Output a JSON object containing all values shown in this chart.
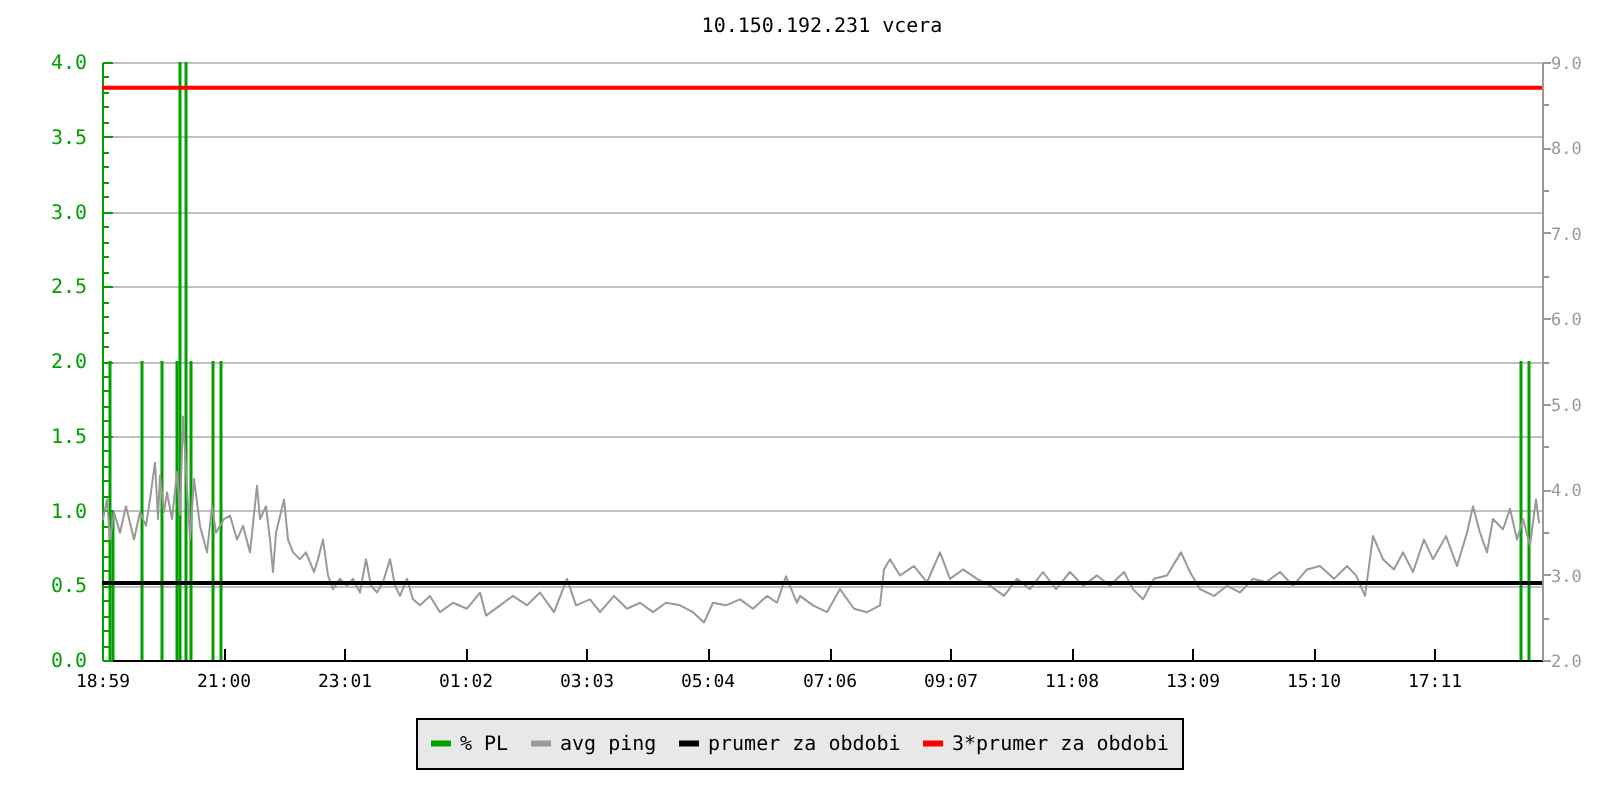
{
  "chart_data": {
    "type": "line",
    "title": "10.150.192.231 vcera",
    "xlim": [
      "2000-01-01T18:59",
      "2000-01-02T18:59"
    ],
    "xticks": [
      {
        "value": "2000-01-01T18:59",
        "label": "18:59"
      },
      {
        "value": "2000-01-01T21:00",
        "label": "21:00"
      },
      {
        "value": "2000-01-01T23:01",
        "label": "23:01"
      },
      {
        "value": "2000-01-02T01:02",
        "label": "01:02"
      },
      {
        "value": "2000-01-02T03:03",
        "label": "03:03"
      },
      {
        "value": "2000-01-02T05:04",
        "label": "05:04"
      },
      {
        "value": "2000-01-02T07:06",
        "label": "07:06"
      },
      {
        "value": "2000-01-02T09:07",
        "label": "09:07"
      },
      {
        "value": "2000-01-02T11:08",
        "label": "11:08"
      },
      {
        "value": "2000-01-02T13:09",
        "label": "13:09"
      },
      {
        "value": "2000-01-02T15:10",
        "label": "15:10"
      },
      {
        "value": "2000-01-02T17:11",
        "label": "17:11"
      }
    ],
    "ylim": [
      0,
      4
    ],
    "yticks": [
      {
        "value": 0,
        "label": "0.0"
      },
      {
        "value": 0.1,
        "label": null
      },
      {
        "value": 0.2,
        "label": null
      },
      {
        "value": 0.3,
        "label": null
      },
      {
        "value": 0.4,
        "label": null
      },
      {
        "value": 0.5,
        "label": "0.5"
      },
      {
        "value": 0.6,
        "label": null
      },
      {
        "value": 0.7,
        "label": null
      },
      {
        "value": 0.8,
        "label": null
      },
      {
        "value": 0.9,
        "label": null
      },
      {
        "value": 1,
        "label": "1.0"
      },
      {
        "value": 1.1,
        "label": null
      },
      {
        "value": 1.2,
        "label": null
      },
      {
        "value": 1.3,
        "label": null
      },
      {
        "value": 1.4,
        "label": null
      },
      {
        "value": 1.5,
        "label": "1.5"
      },
      {
        "value": 1.6,
        "label": null
      },
      {
        "value": 1.7,
        "label": null
      },
      {
        "value": 1.8,
        "label": null
      },
      {
        "value": 1.9,
        "label": null
      },
      {
        "value": 2,
        "label": "2.0"
      },
      {
        "value": 2.1,
        "label": null
      },
      {
        "value": 2.2,
        "label": null
      },
      {
        "value": 2.3,
        "label": null
      },
      {
        "value": 2.4,
        "label": null
      },
      {
        "value": 2.5,
        "label": "2.5"
      },
      {
        "value": 2.6,
        "label": null
      },
      {
        "value": 2.7,
        "label": null
      },
      {
        "value": 2.8,
        "label": null
      },
      {
        "value": 2.9,
        "label": null
      },
      {
        "value": 3,
        "label": "3.0"
      },
      {
        "value": 3.1,
        "label": null
      },
      {
        "value": 3.2,
        "label": null
      },
      {
        "value": 3.3,
        "label": null
      },
      {
        "value": 3.4,
        "label": null
      },
      {
        "value": 3.5,
        "label": "3.5"
      },
      {
        "value": 3.6,
        "label": null
      },
      {
        "value": 3.7,
        "label": null
      },
      {
        "value": 3.8,
        "label": null
      },
      {
        "value": 3.9,
        "label": null
      },
      {
        "value": 4,
        "label": "4.0"
      }
    ],
    "y2lim": [
      2,
      9
    ],
    "y2ticks": [
      {
        "value": 2,
        "label": "2.0"
      },
      {
        "value": 2.5,
        "label": null
      },
      {
        "value": 3,
        "label": "3.0"
      },
      {
        "value": 3.5,
        "label": null
      },
      {
        "value": 4,
        "label": "4.0"
      },
      {
        "value": 4.5,
        "label": null
      },
      {
        "value": 5,
        "label": "5.0"
      },
      {
        "value": 5.5,
        "label": null
      },
      {
        "value": 6,
        "label": "6.0"
      },
      {
        "value": 6.5,
        "label": null
      },
      {
        "value": 7,
        "label": "7.0"
      },
      {
        "value": 7.5,
        "label": null
      },
      {
        "value": 8,
        "label": "8.0"
      },
      {
        "value": 8.5,
        "label": null
      },
      {
        "value": 9,
        "label": "9.0"
      }
    ],
    "grid": "y",
    "legend": "bottom",
    "series": [
      {
        "name": "% PL",
        "type": "bar",
        "color": "#00a000",
        "x": [
          "2000-01-01T19:07",
          "2000-01-01T19:10",
          "2000-01-01T19:39",
          "2000-01-01T19:59",
          "2000-01-01T20:14",
          "2000-01-01T20:17",
          "2000-01-01T20:23",
          "2000-01-01T20:28",
          "2000-01-01T20:50",
          "2000-01-01T20:58",
          "2000-01-02T18:38",
          "2000-01-02T18:46"
        ],
        "values": [
          2,
          1,
          2,
          2,
          2,
          4,
          4,
          2,
          2,
          2,
          2,
          2
        ]
      },
      {
        "name": "avg ping",
        "axis": "y2",
        "color": "#999999",
        "x": [
          "2000-01-01T19:00",
          "2000-01-01T19:04",
          "2000-01-01T19:07",
          "2000-01-01T19:11",
          "2000-01-01T19:17",
          "2000-01-01T19:23",
          "2000-01-01T19:31",
          "2000-01-01T19:37",
          "2000-01-01T19:43",
          "2000-01-01T19:47",
          "2000-01-01T19:52",
          "2000-01-01T19:55",
          "2000-01-01T19:57",
          "2000-01-01T20:01",
          "2000-01-01T20:04",
          "2000-01-01T20:09",
          "2000-01-01T20:14",
          "2000-01-01T20:17",
          "2000-01-01T20:20",
          "2000-01-01T20:27",
          "2000-01-01T20:31",
          "2000-01-01T20:37",
          "2000-01-01T20:44",
          "2000-01-01T20:49",
          "2000-01-01T20:53",
          "2000-01-01T21:01",
          "2000-01-01T21:07",
          "2000-01-01T21:14",
          "2000-01-01T21:20",
          "2000-01-01T21:27",
          "2000-01-01T21:34",
          "2000-01-01T21:37",
          "2000-01-01T21:43",
          "2000-01-01T21:47",
          "2000-01-01T21:50",
          "2000-01-01T21:53",
          "2000-01-01T22:01",
          "2000-01-01T22:05",
          "2000-01-01T22:10",
          "2000-01-01T22:17",
          "2000-01-01T22:23",
          "2000-01-01T22:31",
          "2000-01-01T22:35",
          "2000-01-01T22:40",
          "2000-01-01T22:45",
          "2000-01-01T22:50",
          "2000-01-01T22:57",
          "2000-01-01T23:04",
          "2000-01-01T23:10",
          "2000-01-01T23:17",
          "2000-01-01T23:23",
          "2000-01-01T23:28",
          "2000-01-01T23:34",
          "2000-01-01T23:40",
          "2000-01-01T23:47",
          "2000-01-01T23:52",
          "2000-01-01T23:57",
          "2000-01-02T00:04",
          "2000-01-02T00:10",
          "2000-01-02T00:17",
          "2000-01-02T00:27",
          "2000-01-02T00:37",
          "2000-01-02T00:50",
          "2000-01-02T01:04",
          "2000-01-02T01:17",
          "2000-01-02T01:23",
          "2000-01-02T01:37",
          "2000-01-02T01:50",
          "2000-01-02T02:04",
          "2000-01-02T02:17",
          "2000-01-02T02:31",
          "2000-01-02T02:44",
          "2000-01-02T02:53",
          "2000-01-02T03:07",
          "2000-01-02T03:17",
          "2000-01-02T03:31",
          "2000-01-02T03:44",
          "2000-01-02T03:57",
          "2000-01-02T04:10",
          "2000-01-02T04:23",
          "2000-01-02T04:37",
          "2000-01-02T04:50",
          "2000-01-02T05:01",
          "2000-01-02T05:10",
          "2000-01-02T05:23",
          "2000-01-02T05:37",
          "2000-01-02T05:50",
          "2000-01-02T06:04",
          "2000-01-02T06:14",
          "2000-01-02T06:23",
          "2000-01-02T06:34",
          "2000-01-02T06:37",
          "2000-01-02T06:50",
          "2000-01-02T07:04",
          "2000-01-02T07:17",
          "2000-01-02T07:31",
          "2000-01-02T07:44",
          "2000-01-02T07:57",
          "2000-01-02T08:01",
          "2000-01-02T08:07",
          "2000-01-02T08:17",
          "2000-01-02T08:31",
          "2000-01-02T08:44",
          "2000-01-02T08:57",
          "2000-01-02T09:07",
          "2000-01-02T09:20",
          "2000-01-02T09:34",
          "2000-01-02T09:47",
          "2000-01-02T10:01",
          "2000-01-02T10:14",
          "2000-01-02T10:27",
          "2000-01-02T10:40",
          "2000-01-02T10:53",
          "2000-01-02T11:07",
          "2000-01-02T11:20",
          "2000-01-02T11:34",
          "2000-01-02T11:47",
          "2000-01-02T12:01",
          "2000-01-02T12:10",
          "2000-01-02T12:20",
          "2000-01-02T12:31",
          "2000-01-02T12:44",
          "2000-01-02T12:58",
          "2000-01-02T13:07",
          "2000-01-02T13:17",
          "2000-01-02T13:31",
          "2000-01-02T13:44",
          "2000-01-02T13:57",
          "2000-01-02T14:10",
          "2000-01-02T14:23",
          "2000-01-02T14:37",
          "2000-01-02T14:50",
          "2000-01-02T15:04",
          "2000-01-02T15:17",
          "2000-01-02T15:31",
          "2000-01-02T15:44",
          "2000-01-02T15:53",
          "2000-01-02T16:02",
          "2000-01-02T16:10",
          "2000-01-02T16:20",
          "2000-01-02T16:31",
          "2000-01-02T16:40",
          "2000-01-02T16:50",
          "2000-01-02T17:01",
          "2000-01-02T17:10",
          "2000-01-02T17:23",
          "2000-01-02T17:34",
          "2000-01-02T17:44",
          "2000-01-02T17:50",
          "2000-01-02T17:57",
          "2000-01-02T18:04",
          "2000-01-02T18:10",
          "2000-01-02T18:20",
          "2000-01-02T18:27",
          "2000-01-02T18:34",
          "2000-01-02T18:40",
          "2000-01-02T18:47",
          "2000-01-02T18:53",
          "2000-01-02T18:56"
        ],
        "values": [
          3.65,
          3.88,
          3.41,
          3.73,
          3.49,
          3.8,
          3.41,
          3.73,
          3.57,
          3.88,
          4.31,
          3.65,
          4.16,
          3.73,
          3.96,
          3.65,
          4.2,
          3.7,
          4.85,
          3.41,
          4.12,
          3.57,
          3.26,
          3.8,
          3.49,
          3.65,
          3.69,
          3.41,
          3.57,
          3.26,
          4.04,
          3.65,
          3.8,
          3.41,
          3.03,
          3.49,
          3.88,
          3.41,
          3.26,
          3.18,
          3.26,
          3.03,
          3.18,
          3.41,
          2.99,
          2.83,
          2.95,
          2.87,
          2.95,
          2.79,
          3.18,
          2.87,
          2.79,
          2.91,
          3.18,
          2.87,
          2.75,
          2.95,
          2.71,
          2.64,
          2.75,
          2.56,
          2.67,
          2.6,
          2.79,
          2.52,
          2.64,
          2.75,
          2.64,
          2.79,
          2.56,
          2.95,
          2.64,
          2.71,
          2.56,
          2.75,
          2.6,
          2.67,
          2.56,
          2.67,
          2.64,
          2.56,
          2.44,
          2.67,
          2.64,
          2.71,
          2.6,
          2.75,
          2.67,
          2.98,
          2.67,
          2.75,
          2.64,
          2.56,
          2.83,
          2.6,
          2.56,
          2.64,
          3.06,
          3.18,
          2.99,
          3.1,
          2.91,
          3.26,
          2.95,
          3.06,
          2.95,
          2.87,
          2.75,
          2.95,
          2.83,
          3.03,
          2.83,
          3.03,
          2.87,
          2.99,
          2.87,
          3.03,
          2.83,
          2.71,
          2.95,
          2.99,
          3.26,
          3.03,
          2.83,
          2.75,
          2.87,
          2.79,
          2.95,
          2.91,
          3.03,
          2.87,
          3.06,
          3.1,
          2.95,
          3.1,
          2.99,
          2.75,
          3.45,
          3.18,
          3.06,
          3.26,
          3.03,
          3.41,
          3.18,
          3.45,
          3.1,
          3.49,
          3.8,
          3.49,
          3.26,
          3.65,
          3.53,
          3.77,
          3.41,
          3.65,
          3.34,
          3.88,
          3.61
        ]
      }
    ],
    "ref_lines": [
      {
        "axis": "y2",
        "value": 2.9,
        "label": "prumer za obdobi",
        "color": "#000000"
      },
      {
        "axis": "y2",
        "value": 8.7,
        "label": "3*prumer za obdobi",
        "color": "#ff0000"
      }
    ]
  }
}
